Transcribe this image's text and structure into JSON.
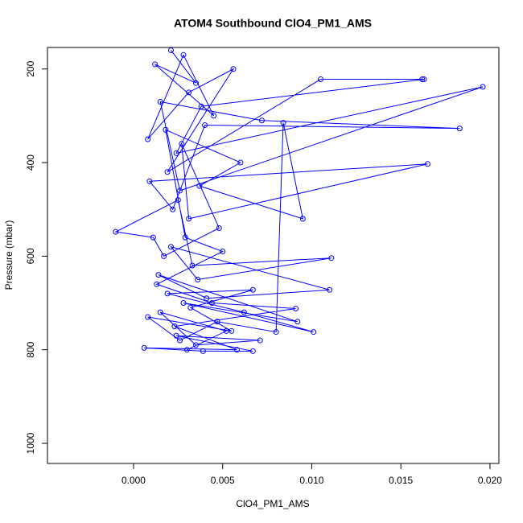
{
  "chart_data": {
    "type": "line",
    "title": "ATOM4 Southbound ClO4_PM1_AMS",
    "x_label": "ClO4_PM1_AMS",
    "y_label": "Pressure (mbar)",
    "color": "#0000ff",
    "x": [
      0.0021,
      0.0035,
      0.0012,
      0.0045,
      0.0028,
      0.0008,
      0.0031,
      0.0056,
      0.0019,
      0.0105,
      0.0162,
      0.0163,
      0.0038,
      0.0024,
      0.0196,
      0.0026,
      0.0015,
      0.0072,
      0.0183,
      0.004,
      0.0022,
      0.0009,
      0.0165,
      0.0031,
      0.0027,
      0.0048,
      0.0017,
      0.0011,
      -0.001,
      0.0025,
      0.0033,
      0.0111,
      0.0036,
      0.0021,
      0.011,
      0.0041,
      0.0014,
      0.0092,
      0.0028,
      0.0101,
      0.0062,
      0.0019,
      0.0067,
      0.0032,
      0.0055,
      0.0008,
      0.0026,
      0.0047,
      0.008,
      0.0084,
      0.0095,
      0.0037,
      0.006,
      0.0018,
      0.0029,
      0.005,
      0.0013,
      0.0044,
      0.0091,
      0.0023,
      0.0058,
      0.0006,
      0.0039,
      0.0067,
      0.0024,
      0.0071,
      0.0035,
      0.0015,
      0.0052,
      0.003
    ],
    "values": [
      160,
      230,
      190,
      300,
      170,
      350,
      250,
      200,
      420,
      222,
      222,
      222,
      280,
      380,
      238,
      460,
      270,
      310,
      327,
      320,
      500,
      440,
      403,
      520,
      360,
      540,
      600,
      560,
      548,
      480,
      620,
      604,
      650,
      580,
      672,
      690,
      640,
      740,
      700,
      762,
      720,
      680,
      672,
      710,
      760,
      730,
      780,
      740,
      762,
      315,
      520,
      450,
      400,
      330,
      560,
      590,
      660,
      700,
      712,
      750,
      800,
      796,
      803,
      803,
      770,
      780,
      790,
      720,
      760,
      800
    ],
    "xlim": [
      -0.00483,
      0.0205
    ],
    "ylim": [
      1043,
      154
    ],
    "xticks": [
      {
        "value": 0,
        "label": "0.000"
      },
      {
        "value": 0.005,
        "label": "0.005"
      },
      {
        "value": 0.01,
        "label": "0.010"
      },
      {
        "value": 0.015,
        "label": "0.015"
      },
      {
        "value": 0.02,
        "label": "0.020"
      }
    ],
    "yticks": [
      200,
      400,
      600,
      800,
      1000
    ],
    "markers": true
  }
}
